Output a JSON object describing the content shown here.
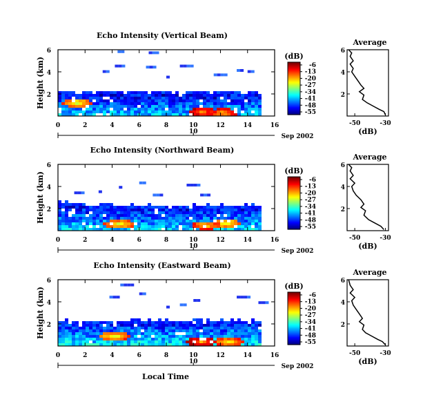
{
  "chart_data": [
    {
      "type": "heatmap",
      "title": "Echo Intensity (Vertical Beam)",
      "ylabel": "Height (km)",
      "xlim": [
        0,
        16
      ],
      "ylim": [
        0,
        6
      ],
      "xticks": [
        "0",
        "2",
        "4",
        "6",
        "8",
        "10",
        "12",
        "14",
        "16"
      ],
      "yticks": [
        "2",
        "4",
        "6"
      ],
      "date_marker": "10",
      "date_label": "Sep 2002",
      "colorbar": {
        "unit": "(dB)",
        "ticks": [
          "-6",
          "-13",
          "-20",
          "-27",
          "-34",
          "-41",
          "-48",
          "-55"
        ],
        "range": [
          -55,
          -6
        ]
      },
      "layer": {
        "x_end": 15.0,
        "top_km": [
          2.4,
          2.3,
          2.35,
          2.4,
          2.3,
          2.35,
          2.3,
          2.35,
          2.3,
          2.4,
          2.35,
          2.3,
          2.35,
          2.3,
          2.35,
          2.4
        ],
        "core_dB": -38
      },
      "hotspots": [
        {
          "x": 10.6,
          "y": 0.5,
          "dB": -20
        },
        {
          "x": 12.0,
          "y": 0.4,
          "dB": -22
        },
        {
          "x": 1.3,
          "y": 1.3,
          "dB": -27
        }
      ],
      "scatter_echoes": [
        {
          "x": 4.4,
          "y": 5.7
        },
        {
          "x": 6.7,
          "y": 5.6
        },
        {
          "x": 4.2,
          "y": 4.4
        },
        {
          "x": 6.5,
          "y": 4.3
        },
        {
          "x": 3.3,
          "y": 3.9
        },
        {
          "x": 9.0,
          "y": 4.4
        },
        {
          "x": 13.2,
          "y": 4.0
        },
        {
          "x": 14.0,
          "y": 3.9
        },
        {
          "x": 11.5,
          "y": 3.6
        },
        {
          "x": 8.0,
          "y": 3.4
        }
      ],
      "average_profile": {
        "title": "Average",
        "xlabel": "(dB)",
        "xlim": [
          -55,
          -28
        ],
        "ylim": [
          0,
          6
        ],
        "xticks": [
          "-50",
          "-30"
        ],
        "yticks": [
          "2",
          "4",
          "6"
        ],
        "values": [
          [
            -30,
            0.1
          ],
          [
            -31,
            0.4
          ],
          [
            -34,
            0.6
          ],
          [
            -38,
            0.9
          ],
          [
            -42,
            1.2
          ],
          [
            -45,
            1.5
          ],
          [
            -44,
            1.9
          ],
          [
            -47,
            2.2
          ],
          [
            -44,
            2.5
          ],
          [
            -46,
            2.8
          ],
          [
            -48,
            3.2
          ],
          [
            -50,
            3.6
          ],
          [
            -52,
            4.0
          ],
          [
            -51,
            4.3
          ],
          [
            -53,
            4.7
          ],
          [
            -51,
            5.0
          ],
          [
            -53,
            5.4
          ],
          [
            -52,
            5.7
          ],
          [
            -54,
            6.0
          ]
        ]
      }
    },
    {
      "type": "heatmap",
      "title": "Echo Intensity (Northward Beam)",
      "ylabel": "Height (km)",
      "xlim": [
        0,
        16
      ],
      "ylim": [
        0,
        6
      ],
      "xticks": [
        "0",
        "2",
        "4",
        "6",
        "8",
        "10",
        "12",
        "14",
        "16"
      ],
      "yticks": [
        "2",
        "4",
        "6"
      ],
      "date_marker": "10",
      "date_label": "Sep 2002",
      "colorbar": {
        "unit": "(dB)",
        "ticks": [
          "-6",
          "-13",
          "-20",
          "-27",
          "-34",
          "-41",
          "-48",
          "-55"
        ],
        "range": [
          -55,
          -6
        ]
      },
      "layer": {
        "x_end": 15.0,
        "top_km": [
          2.8,
          2.6,
          2.5,
          2.5,
          2.4,
          2.5,
          2.4,
          2.45,
          2.4,
          2.5,
          2.45,
          2.4,
          2.45,
          2.4,
          2.45,
          2.5
        ],
        "core_dB": -37
      },
      "hotspots": [
        {
          "x": 10.8,
          "y": 0.6,
          "dB": -24
        },
        {
          "x": 4.4,
          "y": 0.7,
          "dB": -27
        },
        {
          "x": 12.2,
          "y": 0.8,
          "dB": -28
        }
      ],
      "scatter_echoes": [
        {
          "x": 1.2,
          "y": 3.3
        },
        {
          "x": 3.0,
          "y": 3.4
        },
        {
          "x": 6.0,
          "y": 4.2
        },
        {
          "x": 9.5,
          "y": 4.0
        },
        {
          "x": 7.0,
          "y": 3.1
        },
        {
          "x": 10.5,
          "y": 3.1
        },
        {
          "x": 4.5,
          "y": 3.8
        }
      ],
      "average_profile": {
        "title": "Average",
        "xlabel": "(dB)",
        "xlim": [
          -55,
          -28
        ],
        "ylim": [
          0,
          6
        ],
        "xticks": [
          "-50",
          "-30"
        ],
        "yticks": [
          "2",
          "4",
          "6"
        ],
        "values": [
          [
            -31,
            0.1
          ],
          [
            -33,
            0.4
          ],
          [
            -37,
            0.7
          ],
          [
            -41,
            1.0
          ],
          [
            -44,
            1.4
          ],
          [
            -43,
            1.8
          ],
          [
            -46,
            2.1
          ],
          [
            -44,
            2.4
          ],
          [
            -46,
            2.8
          ],
          [
            -49,
            3.2
          ],
          [
            -51,
            3.6
          ],
          [
            -52,
            4.0
          ],
          [
            -50,
            4.3
          ],
          [
            -53,
            4.7
          ],
          [
            -51,
            5.0
          ],
          [
            -53,
            5.4
          ],
          [
            -52,
            5.7
          ],
          [
            -54,
            6.0
          ]
        ]
      }
    },
    {
      "type": "heatmap",
      "title": "Echo Intensity (Eastward Beam)",
      "ylabel": "Height (km)",
      "xlabel": "Local Time",
      "xlim": [
        0,
        16
      ],
      "ylim": [
        0,
        6
      ],
      "xticks": [
        "0",
        "2",
        "4",
        "6",
        "8",
        "10",
        "12",
        "14",
        "16"
      ],
      "yticks": [
        "2",
        "4",
        "6"
      ],
      "date_marker": "10",
      "date_label": "Sep 2002",
      "colorbar": {
        "unit": "(dB)",
        "ticks": [
          "-6",
          "-13",
          "-20",
          "-27",
          "-34",
          "-41",
          "-48",
          "-55"
        ],
        "range": [
          -55,
          -6
        ]
      },
      "layer": {
        "x_end": 15.0,
        "top_km": [
          2.4,
          2.35,
          2.4,
          2.45,
          2.4,
          2.5,
          2.4,
          2.45,
          2.4,
          2.5,
          2.45,
          2.4,
          2.45,
          2.4,
          2.45,
          2.5
        ],
        "core_dB": -36
      },
      "hotspots": [
        {
          "x": 10.5,
          "y": 0.5,
          "dB": -20
        },
        {
          "x": 12.5,
          "y": 0.5,
          "dB": -25
        },
        {
          "x": 4.0,
          "y": 1.0,
          "dB": -27
        }
      ],
      "scatter_echoes": [
        {
          "x": 4.6,
          "y": 5.4
        },
        {
          "x": 3.8,
          "y": 4.3
        },
        {
          "x": 6.0,
          "y": 4.6
        },
        {
          "x": 9.0,
          "y": 3.6
        },
        {
          "x": 13.2,
          "y": 4.3
        },
        {
          "x": 14.8,
          "y": 3.8
        },
        {
          "x": 8.0,
          "y": 3.4
        },
        {
          "x": 10.0,
          "y": 4.0
        }
      ],
      "average_profile": {
        "title": "Average",
        "xlabel": "(dB)",
        "xlim": [
          -55,
          -28
        ],
        "ylim": [
          0,
          6
        ],
        "xticks": [
          "-50",
          "-30"
        ],
        "yticks": [
          "2",
          "4",
          "6"
        ],
        "values": [
          [
            -30,
            0.1
          ],
          [
            -32,
            0.4
          ],
          [
            -35,
            0.6
          ],
          [
            -39,
            0.9
          ],
          [
            -43,
            1.2
          ],
          [
            -45,
            1.5
          ],
          [
            -44,
            1.9
          ],
          [
            -47,
            2.2
          ],
          [
            -45,
            2.5
          ],
          [
            -47,
            2.9
          ],
          [
            -49,
            3.3
          ],
          [
            -51,
            3.7
          ],
          [
            -52,
            4.1
          ],
          [
            -50,
            4.4
          ],
          [
            -53,
            4.8
          ],
          [
            -51,
            5.1
          ],
          [
            -53,
            5.5
          ],
          [
            -54,
            6.0
          ]
        ]
      }
    }
  ]
}
